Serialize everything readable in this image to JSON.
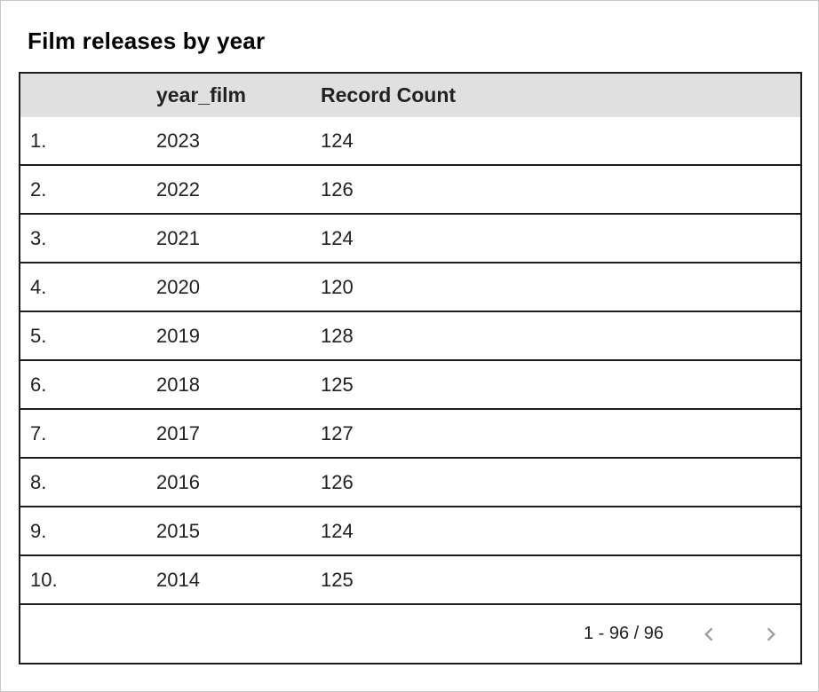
{
  "card": {
    "title": "Film releases by year"
  },
  "chart_data": {
    "type": "table",
    "title": "Film releases by year",
    "columns": [
      "",
      "year_film",
      "Record Count"
    ],
    "rows": [
      {
        "rank": "1.",
        "year_film": "2023",
        "record_count": "124"
      },
      {
        "rank": "2.",
        "year_film": "2022",
        "record_count": "126"
      },
      {
        "rank": "3.",
        "year_film": "2021",
        "record_count": "124"
      },
      {
        "rank": "4.",
        "year_film": "2020",
        "record_count": "120"
      },
      {
        "rank": "5.",
        "year_film": "2019",
        "record_count": "128"
      },
      {
        "rank": "6.",
        "year_film": "2018",
        "record_count": "125"
      },
      {
        "rank": "7.",
        "year_film": "2017",
        "record_count": "127"
      },
      {
        "rank": "8.",
        "year_film": "2016",
        "record_count": "126"
      },
      {
        "rank": "9.",
        "year_film": "2015",
        "record_count": "124"
      },
      {
        "rank": "10.",
        "year_film": "2014",
        "record_count": "125"
      }
    ],
    "layout_hints": {
      "header_background": "#e0e0e0",
      "row_border": "dark 2px horizontal lines",
      "alignment": "left"
    }
  },
  "pagination": {
    "range_label": "1 - 96 / 96",
    "prev_icon": "chevron-left",
    "next_icon": "chevron-right"
  },
  "colors": {
    "card_border": "#c8c8c8",
    "table_border": "#1b1b1b",
    "header_bg": "#e0e0e0",
    "text": "#202124",
    "chevron": "#9e9e9e"
  }
}
